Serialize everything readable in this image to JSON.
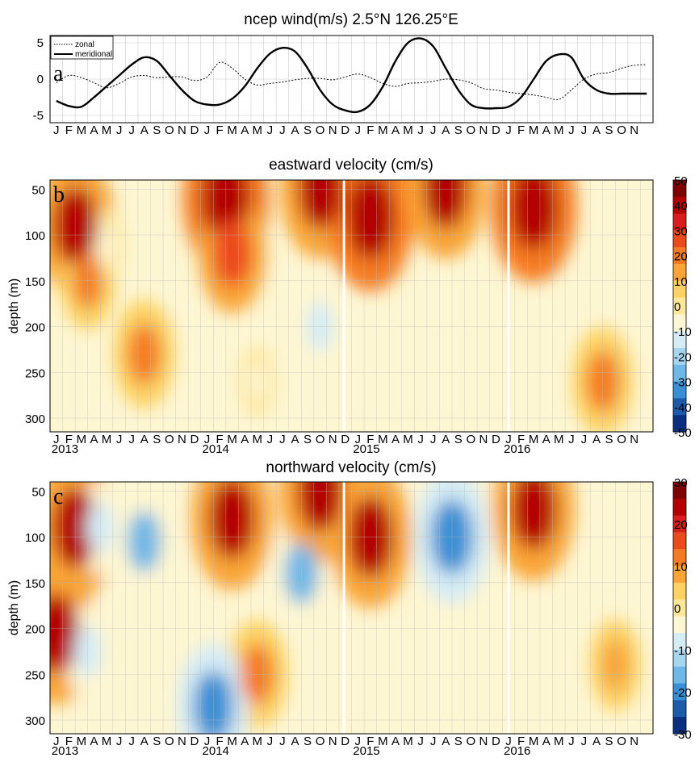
{
  "chart_data": [
    {
      "panel": "a",
      "type": "line",
      "title": "ncep wind(m/s) 2.5°N 126.25°E",
      "ylim": [
        -6,
        6
      ],
      "yticks": [
        "5",
        "0",
        "-5"
      ],
      "month_labels": [
        "J",
        "F",
        "M",
        "A",
        "M",
        "J",
        "J",
        "A",
        "S",
        "O",
        "N",
        "D",
        "J",
        "F",
        "M",
        "A",
        "M",
        "J",
        "J",
        "A",
        "S",
        "O",
        "N",
        "D",
        "J",
        "F",
        "M",
        "A",
        "M",
        "J",
        "J",
        "A",
        "S",
        "O",
        "N",
        "D",
        "J",
        "F",
        "M",
        "A",
        "M",
        "J",
        "J",
        "A",
        "S",
        "O",
        "N"
      ],
      "grid": true,
      "legend_position": "top-left",
      "series": [
        {
          "name": "zonal",
          "style": "dotted",
          "x": [
            0,
            1,
            2,
            3,
            4,
            5,
            6,
            7,
            8,
            9,
            10,
            11,
            12,
            13,
            14,
            15,
            16,
            17,
            18,
            19,
            20,
            21,
            22,
            23,
            24,
            25,
            26,
            27,
            28,
            29,
            30,
            31,
            32,
            33,
            34,
            35,
            36,
            37,
            38,
            39,
            40,
            41,
            42,
            43,
            44,
            45,
            46,
            47
          ],
          "values": [
            -0.5,
            0.5,
            0.2,
            -0.5,
            -1.2,
            -0.6,
            0.3,
            0.5,
            0.2,
            0.3,
            0.3,
            -0.2,
            0.3,
            2.3,
            1.5,
            0,
            -0.8,
            -0.6,
            -0.4,
            -0.1,
            0.1,
            0.1,
            -0.1,
            0.3,
            0.7,
            0.2,
            -0.6,
            -1.0,
            -0.6,
            -0.5,
            -0.3,
            0,
            -0.1,
            -0.5,
            -1.3,
            -1.5,
            -1.8,
            -2.0,
            -2.2,
            -2.5,
            -2.8,
            -1.5,
            0,
            0.7,
            0.9,
            1.5,
            1.9,
            2.0
          ]
        },
        {
          "name": "meridional",
          "style": "solid",
          "x": [
            0,
            1,
            2,
            3,
            4,
            5,
            6,
            7,
            8,
            9,
            10,
            11,
            12,
            13,
            14,
            15,
            16,
            17,
            18,
            19,
            20,
            21,
            22,
            23,
            24,
            25,
            26,
            27,
            28,
            29,
            30,
            31,
            32,
            33,
            34,
            35,
            36,
            37,
            38,
            39,
            40,
            41,
            42,
            43,
            44,
            45,
            46,
            47
          ],
          "values": [
            -3.0,
            -3.7,
            -3.8,
            -2.5,
            -1.0,
            0.5,
            2.0,
            3.0,
            2.5,
            0.5,
            -1.5,
            -3.0,
            -3.5,
            -3.5,
            -2.7,
            -1.0,
            1.5,
            3.5,
            4.3,
            3.8,
            1.5,
            -1.5,
            -3.5,
            -4.3,
            -4.5,
            -3.5,
            -1.0,
            2.5,
            5.0,
            5.6,
            4.5,
            1.5,
            -1.5,
            -3.5,
            -4.0,
            -4.0,
            -3.8,
            -2.5,
            0,
            2.5,
            3.4,
            3.0,
            0,
            -1.5,
            -2.0,
            -2.0,
            -2.0,
            -2.0
          ]
        }
      ]
    },
    {
      "panel": "b",
      "type": "heatmap",
      "title": "eastward velocity (cm/s)",
      "ylabel": "depth (m)",
      "yticks": [
        "50",
        "100",
        "150",
        "200",
        "250",
        "300"
      ],
      "ylim": [
        40,
        315
      ],
      "x_month_labels": [
        "J",
        "F",
        "M",
        "A",
        "M",
        "J",
        "J",
        "A",
        "S",
        "O",
        "N",
        "D",
        "J",
        "F",
        "M",
        "A",
        "M",
        "J",
        "J",
        "A",
        "S",
        "O",
        "N",
        "D",
        "J",
        "F",
        "M",
        "A",
        "M",
        "J",
        "J",
        "A",
        "S",
        "O",
        "N",
        "D",
        "J",
        "F",
        "M",
        "A",
        "M",
        "J",
        "J",
        "A",
        "S",
        "O",
        "N"
      ],
      "x_year_labels": [
        "2013",
        "2014",
        "2015",
        "2016"
      ],
      "colorbar_ticks": [
        "50",
        "40",
        "30",
        "20",
        "10",
        "0",
        "-10",
        "-20",
        "-30",
        "-40",
        "-50"
      ],
      "colorbar_colors": [
        "#7f0000",
        "#b40000",
        "#d81e1e",
        "#eb4a1d",
        "#f47b24",
        "#f9a537",
        "#fdd262",
        "#fde79a",
        "#fdf6d2",
        "#d5ecf5",
        "#a6d6ef",
        "#6fb7e6",
        "#3a8fd4",
        "#1d5ba8",
        "#0a2f7c"
      ],
      "cells": [
        {
          "x": 1.5,
          "depth": 90,
          "value": 40
        },
        {
          "x": 2.5,
          "depth": 150,
          "value": 20
        },
        {
          "x": 7,
          "depth": 230,
          "value": 25
        },
        {
          "x": 13.5,
          "depth": 60,
          "value": 45
        },
        {
          "x": 14,
          "depth": 120,
          "value": 30
        },
        {
          "x": 21,
          "depth": 50,
          "value": 40
        },
        {
          "x": 21,
          "depth": 200,
          "value": -15
        },
        {
          "x": 25,
          "depth": 80,
          "value": 45
        },
        {
          "x": 31,
          "depth": 50,
          "value": 40
        },
        {
          "x": 38,
          "depth": 70,
          "value": 45
        },
        {
          "x": 43.5,
          "depth": 260,
          "value": 25
        },
        {
          "x": 4,
          "depth": 110,
          "value": -5
        },
        {
          "x": 16,
          "depth": 260,
          "value": -5
        }
      ]
    },
    {
      "panel": "c",
      "type": "heatmap",
      "title": "northward velocity (cm/s)",
      "ylabel": "depth (m)",
      "yticks": [
        "50",
        "100",
        "150",
        "200",
        "250",
        "300"
      ],
      "ylim": [
        40,
        315
      ],
      "x_month_labels": [
        "J",
        "F",
        "M",
        "A",
        "M",
        "J",
        "J",
        "A",
        "S",
        "O",
        "N",
        "D",
        "J",
        "F",
        "M",
        "A",
        "M",
        "J",
        "J",
        "A",
        "S",
        "O",
        "N",
        "D",
        "J",
        "F",
        "M",
        "A",
        "M",
        "J",
        "J",
        "A",
        "S",
        "O",
        "N",
        "D",
        "J",
        "F",
        "M",
        "A",
        "M",
        "J",
        "J",
        "A",
        "S",
        "O",
        "N"
      ],
      "x_year_labels": [
        "2013",
        "2014",
        "2015",
        "2016"
      ],
      "colorbar_ticks": [
        "30",
        "20",
        "10",
        "0",
        "-10",
        "-20",
        "-30"
      ],
      "colorbar_colors": [
        "#7f0000",
        "#b40000",
        "#d81e1e",
        "#eb4a1d",
        "#f47b24",
        "#f9a537",
        "#fdd262",
        "#fde79a",
        "#fdf6d2",
        "#d5ecf5",
        "#a6d6ef",
        "#6fb7e6",
        "#3a8fd4",
        "#1d5ba8",
        "#0a2f7c"
      ],
      "cells": [
        {
          "x": 1.5,
          "depth": 90,
          "value": 25
        },
        {
          "x": 0,
          "depth": 205,
          "value": 25
        },
        {
          "x": 3.5,
          "depth": 90,
          "value": -10
        },
        {
          "x": 7,
          "depth": 105,
          "value": -15
        },
        {
          "x": 14,
          "depth": 80,
          "value": 25
        },
        {
          "x": 16,
          "depth": 250,
          "value": 15
        },
        {
          "x": 12.5,
          "depth": 285,
          "value": -20
        },
        {
          "x": 19.5,
          "depth": 140,
          "value": -15
        },
        {
          "x": 21,
          "depth": 50,
          "value": 25
        },
        {
          "x": 25,
          "depth": 100,
          "value": 25
        },
        {
          "x": 31.5,
          "depth": 100,
          "value": -22
        },
        {
          "x": 38,
          "depth": 70,
          "value": 25
        },
        {
          "x": 44.5,
          "depth": 240,
          "value": 10
        },
        {
          "x": 2.5,
          "depth": 225,
          "value": -10
        }
      ]
    }
  ]
}
